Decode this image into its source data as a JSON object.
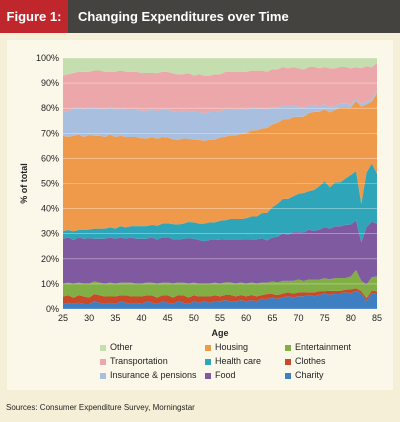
{
  "header": {
    "figure_label": "Figure 1:",
    "title": "Changing Expenditures over Time"
  },
  "source": "Sources: Consumer Expenditure Survey, Morningstar",
  "chart_data": {
    "type": "area",
    "stacked": true,
    "x": [
      25,
      26,
      27,
      28,
      29,
      30,
      31,
      32,
      33,
      34,
      35,
      36,
      37,
      38,
      39,
      40,
      41,
      42,
      43,
      44,
      45,
      46,
      47,
      48,
      49,
      50,
      51,
      52,
      53,
      54,
      55,
      56,
      57,
      58,
      59,
      60,
      61,
      62,
      63,
      64,
      65,
      66,
      67,
      68,
      69,
      70,
      71,
      72,
      73,
      74,
      75,
      76,
      77,
      78,
      79,
      80,
      81,
      82,
      83,
      84,
      85
    ],
    "xlabel": "Age",
    "ylabel": "% of total",
    "xlim": [
      25,
      85
    ],
    "ylim": [
      0,
      100
    ],
    "xticks": [
      25,
      30,
      35,
      40,
      45,
      50,
      55,
      60,
      65,
      70,
      75,
      80,
      85
    ],
    "yticks": [
      0,
      10,
      20,
      30,
      40,
      50,
      60,
      70,
      80,
      90,
      100
    ],
    "ytick_labels": [
      "0%",
      "10%",
      "20%",
      "30%",
      "40%",
      "50%",
      "60%",
      "70%",
      "80%",
      "90%",
      "100%"
    ],
    "legend_position": "bottom",
    "series": [
      {
        "name": "Charity",
        "color": "#3d7fc1",
        "values": [
          2,
          2.5,
          2,
          2.5,
          2,
          2,
          3,
          2.5,
          2,
          2.5,
          2,
          3,
          2.5,
          2,
          2.5,
          2,
          3,
          2.5,
          2,
          3,
          2.5,
          2,
          3,
          2.5,
          2,
          3,
          2.5,
          3,
          2.5,
          3,
          3,
          3.5,
          3,
          3,
          3.5,
          3,
          3.5,
          3,
          4,
          4,
          4.5,
          4,
          4.5,
          5,
          4.5,
          5,
          5,
          5.5,
          5,
          5.5,
          6,
          5.5,
          6,
          6,
          6.5,
          6,
          7,
          6,
          3,
          6,
          6
        ]
      },
      {
        "name": "Clothes",
        "color": "#c94a2b",
        "values": [
          3,
          3,
          2.5,
          3,
          3,
          2.5,
          3,
          3,
          3,
          2.5,
          3,
          2.5,
          3,
          3,
          2.5,
          3,
          2.5,
          3,
          2.5,
          2.5,
          3,
          2.5,
          2.5,
          3,
          2.5,
          2.5,
          2.5,
          2,
          2.5,
          2.5,
          2,
          2,
          2.5,
          2,
          2,
          2,
          2,
          2,
          1.5,
          2,
          1.5,
          1.5,
          1.5,
          1.5,
          1.5,
          1.5,
          1.5,
          1,
          1.5,
          1.5,
          1,
          1.5,
          1,
          1,
          1,
          1.5,
          1,
          1,
          1,
          1,
          1
        ]
      },
      {
        "name": "Entertainment",
        "color": "#82ae46",
        "values": [
          5,
          5,
          5.5,
          5,
          5,
          5.5,
          5,
          5,
          5,
          5.5,
          5,
          5,
          5,
          5.5,
          5,
          5,
          5,
          5,
          5.5,
          5,
          5,
          5.5,
          5,
          5,
          5.5,
          5,
          5,
          5,
          5,
          5,
          5,
          5,
          5,
          5,
          5,
          5,
          5,
          5,
          5,
          4.5,
          5,
          5,
          5,
          4.5,
          5,
          5,
          4.5,
          5,
          5,
          4.5,
          5,
          4.5,
          5,
          5,
          4.5,
          5,
          7,
          4,
          5,
          5,
          6
        ]
      },
      {
        "name": "Food",
        "color": "#7f5aa0",
        "values": [
          18,
          18,
          17.5,
          18,
          18,
          18,
          17,
          17.5,
          18,
          18,
          18,
          18,
          17.5,
          18,
          18,
          18,
          17.5,
          18,
          17.5,
          18,
          18,
          17.5,
          17,
          17.5,
          18,
          17.5,
          17.5,
          17,
          17.5,
          17,
          17.5,
          17,
          17,
          17.5,
          17,
          17.5,
          17,
          17.5,
          17.5,
          17,
          17.5,
          18,
          18.5,
          18,
          19,
          18.5,
          19,
          19.5,
          19,
          19.5,
          20,
          19.5,
          20,
          20,
          20.5,
          20,
          19,
          15,
          21,
          21,
          21
        ]
      },
      {
        "name": "Health care",
        "color": "#2ea5b8",
        "values": [
          3,
          3,
          3.5,
          3,
          3.5,
          3.5,
          4,
          4,
          4,
          4,
          4,
          4.5,
          4.5,
          4.5,
          5,
          5,
          5,
          5,
          5.5,
          5.5,
          5.5,
          6,
          6,
          6,
          6.5,
          6.5,
          6.5,
          7,
          7,
          7,
          7.5,
          7.5,
          8,
          8,
          8,
          8.5,
          9,
          9,
          10,
          11,
          12,
          13,
          13.5,
          14,
          14,
          15,
          15.5,
          15,
          16,
          17,
          18,
          16,
          17,
          17,
          18,
          19,
          19,
          15,
          20,
          22,
          20
        ]
      },
      {
        "name": "Housing",
        "color": "#ef9a4a",
        "values": [
          38,
          37,
          38,
          38,
          37,
          37.5,
          37,
          37,
          36.5,
          37,
          36.5,
          36,
          36,
          35.5,
          35.5,
          35,
          35,
          35,
          34.5,
          34.5,
          34,
          33.5,
          33.5,
          34,
          33,
          33,
          33.5,
          33,
          33,
          33,
          33,
          33,
          33,
          33,
          33.5,
          33.5,
          34,
          34,
          33.5,
          34,
          33,
          32,
          31,
          31,
          31,
          30,
          30,
          30.5,
          30.5,
          29,
          28,
          29,
          28,
          29,
          27.5,
          26,
          27,
          38,
          25,
          23.5,
          32
        ]
      },
      {
        "name": "Insurance & pensions",
        "color": "#a9bfdf",
        "values": [
          10,
          10,
          11,
          11,
          11,
          11,
          11,
          11,
          11,
          11,
          11,
          11,
          11,
          11,
          11,
          11,
          11,
          11,
          11,
          11,
          11,
          11,
          11,
          11,
          11,
          11,
          11,
          11,
          11,
          11,
          10.5,
          10.5,
          10,
          10,
          10,
          9.5,
          9,
          8.5,
          8,
          7.5,
          7,
          6,
          5.5,
          5,
          4.5,
          4,
          3.5,
          3,
          2.5,
          2,
          2,
          2,
          1.5,
          1.5,
          1.5,
          1,
          1,
          1,
          1,
          1,
          1
        ]
      },
      {
        "name": "Transportation",
        "color": "#eca7ab",
        "values": [
          14,
          15,
          14,
          14,
          15,
          14,
          15,
          15,
          15,
          14,
          15,
          15,
          15,
          15,
          15,
          15,
          15,
          14.5,
          15,
          15,
          15,
          15,
          15,
          14.5,
          15,
          14.5,
          15,
          15,
          14.5,
          15,
          14.5,
          15,
          15,
          15,
          14.5,
          15,
          14.5,
          15,
          15,
          15,
          15,
          15,
          15,
          15,
          15,
          15,
          15,
          15,
          15,
          15,
          14.5,
          15,
          14.5,
          14,
          14,
          14,
          12,
          14,
          13,
          12,
          11
        ]
      },
      {
        "name": "Other",
        "color": "#c5deb0",
        "values": [
          7,
          6.5,
          6,
          5.5,
          5.5,
          5.5,
          5,
          5,
          5.5,
          5.5,
          5.5,
          5,
          5.5,
          5.5,
          5.5,
          6,
          6,
          6,
          6,
          5.5,
          5.5,
          6,
          6.5,
          6.5,
          6,
          7,
          6.5,
          7,
          7,
          6.5,
          6.5,
          5.5,
          5.5,
          5.5,
          5.5,
          5.5,
          5,
          5,
          5,
          5.5,
          4.5,
          4.5,
          3.5,
          4,
          3.5,
          4,
          4.5,
          3.5,
          3.5,
          4,
          3.5,
          4,
          4,
          3.5,
          3.5,
          4,
          3.5,
          4,
          3,
          3.5,
          2
        ]
      }
    ],
    "legend_order": [
      "Other",
      "Housing",
      "Entertainment",
      "Transportation",
      "Health care",
      "Clothes",
      "Insurance & pensions",
      "Food",
      "Charity"
    ]
  }
}
